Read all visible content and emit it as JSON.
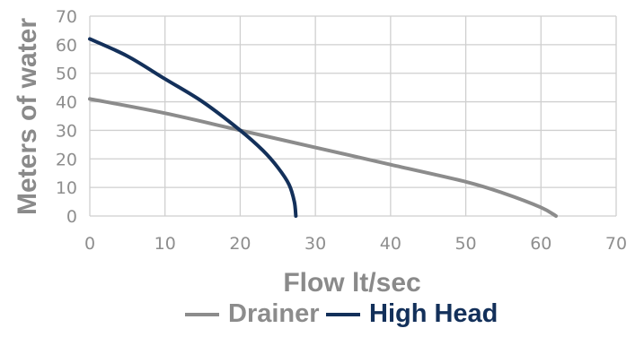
{
  "chart_data": {
    "type": "line",
    "title": "",
    "xlabel": "Flow lt/sec",
    "ylabel": "Meters of water",
    "xlim": [
      0,
      70
    ],
    "ylim": [
      0,
      70
    ],
    "x_ticks": [
      0,
      10,
      20,
      30,
      40,
      50,
      60,
      70
    ],
    "y_ticks": [
      0,
      10,
      20,
      30,
      40,
      50,
      60,
      70
    ],
    "grid": true,
    "legend_position": "bottom",
    "series": [
      {
        "name": "Drainer",
        "color": "#8c8c8c",
        "points": [
          [
            0,
            41
          ],
          [
            10,
            36
          ],
          [
            20,
            30
          ],
          [
            30,
            24
          ],
          [
            40,
            18
          ],
          [
            50,
            12
          ],
          [
            55,
            8
          ],
          [
            60,
            3
          ],
          [
            62,
            0
          ]
        ]
      },
      {
        "name": "High Head",
        "color": "#13305a",
        "points": [
          [
            0,
            62
          ],
          [
            5,
            56
          ],
          [
            10,
            48
          ],
          [
            15,
            40
          ],
          [
            20,
            30
          ],
          [
            23,
            23
          ],
          [
            25,
            17
          ],
          [
            26.5,
            11
          ],
          [
            27.2,
            5
          ],
          [
            27.4,
            0
          ]
        ]
      }
    ]
  }
}
